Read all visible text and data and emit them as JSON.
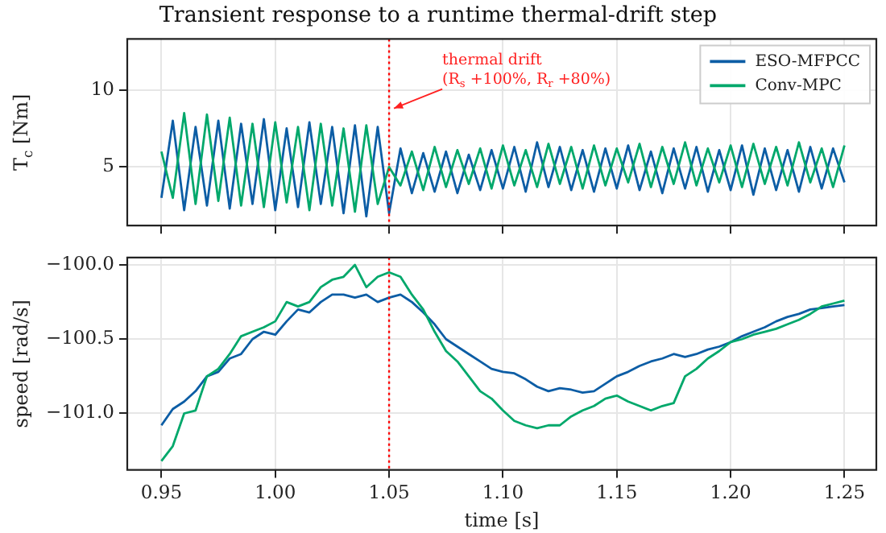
{
  "chart_data": [
    {
      "type": "line",
      "title": "Transient response to a runtime thermal-drift step",
      "ylabel": "T$_{c}$ [Nm]",
      "xlim": [
        0.935,
        1.264
      ],
      "ylim": [
        1.2,
        13.3
      ],
      "xticks": [
        {
          "value": 0.95,
          "label": null
        },
        {
          "value": 1.0,
          "label": null
        },
        {
          "value": 1.05,
          "label": null
        },
        {
          "value": 1.1,
          "label": null
        },
        {
          "value": 1.15,
          "label": null
        },
        {
          "value": 1.2,
          "label": null
        },
        {
          "value": 1.25,
          "label": null
        }
      ],
      "yticks": [
        5,
        10
      ],
      "tick_labels": "y",
      "grid": true,
      "legend": "top right",
      "marker": "none",
      "line_style": "solid",
      "x": [
        0.95,
        0.955,
        0.96,
        0.965,
        0.97,
        0.975,
        0.98,
        0.985,
        0.99,
        0.995,
        1.0,
        1.005,
        1.01,
        1.015,
        1.02,
        1.025,
        1.03,
        1.035,
        1.04,
        1.045,
        1.05,
        1.055,
        1.06,
        1.065,
        1.07,
        1.075,
        1.08,
        1.085,
        1.09,
        1.095,
        1.1,
        1.105,
        1.11,
        1.115,
        1.12,
        1.125,
        1.13,
        1.135,
        1.14,
        1.145,
        1.15,
        1.155,
        1.16,
        1.165,
        1.17,
        1.175,
        1.18,
        1.185,
        1.19,
        1.195,
        1.2,
        1.205,
        1.21,
        1.215,
        1.22,
        1.225,
        1.23,
        1.235,
        1.24,
        1.245,
        1.25
      ],
      "series": [
        {
          "name": "ESO-MFPCC",
          "color": "#0c5da5",
          "values": [
            3,
            8,
            2.2,
            7.6,
            2.5,
            8,
            2.3,
            7.8,
            2.6,
            8.1,
            2.2,
            7.5,
            2.4,
            7.9,
            2.6,
            7.6,
            2,
            7.7,
            1.8,
            7.6,
            2,
            6.2,
            3.3,
            5.9,
            3.4,
            6,
            3.3,
            5.8,
            3.5,
            6.1,
            3.6,
            6.3,
            3.4,
            6.6,
            3.7,
            6.3,
            3.5,
            6.1,
            3.4,
            6.2,
            3.6,
            6.4,
            3.5,
            6,
            3.3,
            6.2,
            3.6,
            6.3,
            3.4,
            6.1,
            3.5,
            6.4,
            3.2,
            6.2,
            3.5,
            6.1,
            3.4,
            6.3,
            3.6,
            6.2,
            4
          ]
        },
        {
          "name": "Conv-MPC",
          "color": "#00a86b",
          "values": [
            6,
            3,
            8.5,
            2.6,
            8.4,
            2.8,
            8.2,
            2.5,
            7.8,
            2.4,
            7.9,
            2.7,
            7.6,
            2.2,
            7.8,
            2.5,
            7.5,
            2.1,
            7.7,
            2.6,
            5,
            3.8,
            6,
            3.5,
            6.3,
            3.7,
            6.1,
            3.9,
            6.2,
            3.6,
            6.4,
            3.8,
            6.1,
            3.7,
            6.5,
            3.9,
            6.3,
            3.6,
            6.4,
            3.8,
            6.2,
            4,
            6.5,
            3.7,
            6.3,
            3.9,
            6.6,
            3.8,
            6.2,
            4,
            6.4,
            3.7,
            6.5,
            3.9,
            6.3,
            3.8,
            6.6,
            4,
            6.2,
            3.7,
            6.4
          ]
        }
      ],
      "ref_lines": [
        {
          "axis": "x",
          "value": 1.05,
          "color": "#ff0000",
          "line_style": "dotted"
        }
      ],
      "annotations": [
        {
          "text": "thermal drift\n(R$_{s}$ +100%, R$_{r}$ +80%)",
          "x": 1.05,
          "y": 8.8
        }
      ]
    },
    {
      "type": "line",
      "xlabel": "time [s]",
      "ylabel": "speed [rad/s]",
      "xlim": [
        0.935,
        1.264
      ],
      "ylim": [
        -101.38,
        -99.95
      ],
      "xticks": [
        0.95,
        {
          "value": 1.0,
          "label": "1.00"
        },
        1.05,
        {
          "value": 1.1,
          "label": "1.10"
        },
        1.15,
        {
          "value": 1.2,
          "label": "1.20"
        },
        1.25
      ],
      "yticks": [
        {
          "value": -100,
          "label": "−100.0"
        },
        {
          "value": -100.5,
          "label": "−100.5"
        },
        {
          "value": -101,
          "label": "−101.0"
        }
      ],
      "grid": true,
      "marker": "none",
      "line_style": "solid",
      "x": [
        0.95,
        0.955,
        0.96,
        0.965,
        0.97,
        0.975,
        0.98,
        0.985,
        0.99,
        0.995,
        1.0,
        1.005,
        1.01,
        1.015,
        1.02,
        1.025,
        1.03,
        1.035,
        1.04,
        1.045,
        1.05,
        1.055,
        1.06,
        1.065,
        1.07,
        1.075,
        1.08,
        1.085,
        1.09,
        1.095,
        1.1,
        1.105,
        1.11,
        1.115,
        1.12,
        1.125,
        1.13,
        1.135,
        1.14,
        1.145,
        1.15,
        1.155,
        1.16,
        1.165,
        1.17,
        1.175,
        1.18,
        1.185,
        1.19,
        1.195,
        1.2,
        1.205,
        1.21,
        1.215,
        1.22,
        1.225,
        1.23,
        1.235,
        1.24,
        1.245,
        1.25
      ],
      "series": [
        {
          "color": "#0c5da5",
          "values": [
            -101.08,
            -100.97,
            -100.92,
            -100.85,
            -100.75,
            -100.72,
            -100.63,
            -100.6,
            -100.5,
            -100.45,
            -100.47,
            -100.38,
            -100.3,
            -100.32,
            -100.25,
            -100.2,
            -100.2,
            -100.22,
            -100.2,
            -100.25,
            -100.22,
            -100.2,
            -100.25,
            -100.32,
            -100.4,
            -100.5,
            -100.55,
            -100.6,
            -100.65,
            -100.7,
            -100.72,
            -100.73,
            -100.77,
            -100.82,
            -100.85,
            -100.83,
            -100.84,
            -100.86,
            -100.85,
            -100.8,
            -100.75,
            -100.72,
            -100.68,
            -100.65,
            -100.63,
            -100.6,
            -100.62,
            -100.6,
            -100.57,
            -100.55,
            -100.52,
            -100.48,
            -100.45,
            -100.42,
            -100.38,
            -100.35,
            -100.33,
            -100.3,
            -100.29,
            -100.28,
            -100.27
          ]
        },
        {
          "color": "#00a86b",
          "values": [
            -101.32,
            -101.22,
            -101,
            -100.98,
            -100.75,
            -100.7,
            -100.6,
            -100.48,
            -100.45,
            -100.42,
            -100.38,
            -100.25,
            -100.28,
            -100.25,
            -100.15,
            -100.1,
            -100.08,
            -100,
            -100.15,
            -100.08,
            -100.05,
            -100.08,
            -100.2,
            -100.3,
            -100.45,
            -100.58,
            -100.65,
            -100.75,
            -100.85,
            -100.9,
            -100.98,
            -101.05,
            -101.08,
            -101.1,
            -101.08,
            -101.08,
            -101.02,
            -100.98,
            -100.95,
            -100.9,
            -100.88,
            -100.92,
            -100.95,
            -100.98,
            -100.95,
            -100.93,
            -100.75,
            -100.7,
            -100.63,
            -100.58,
            -100.52,
            -100.5,
            -100.47,
            -100.45,
            -100.43,
            -100.4,
            -100.37,
            -100.33,
            -100.28,
            -100.26,
            -100.24
          ]
        }
      ],
      "ref_lines": [
        {
          "axis": "x",
          "value": 1.05,
          "color": "#ff0000",
          "line_style": "dotted"
        }
      ]
    }
  ]
}
